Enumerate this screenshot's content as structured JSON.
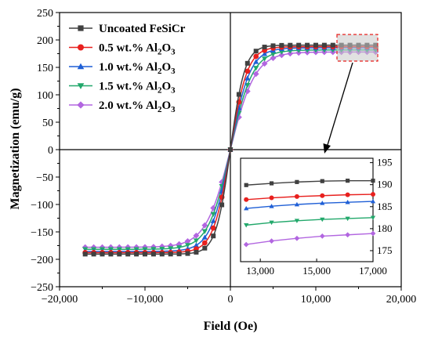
{
  "chart_data": {
    "type": "line",
    "xlabel": "Field (Oe)",
    "ylabel": "Magnetization (emu/g)",
    "xlim": [
      -20000,
      20000
    ],
    "ylim": [
      -250,
      250
    ],
    "xticks": [
      -20000,
      -10000,
      0,
      10000,
      20000
    ],
    "xtick_labels": [
      "−20,000",
      "−10,000",
      "0",
      "10,000",
      "20,000"
    ],
    "yticks": [
      -250,
      -200,
      -150,
      -100,
      -50,
      0,
      50,
      100,
      150,
      200,
      250
    ],
    "ytick_labels": [
      "−250",
      "−200",
      "−150",
      "−100",
      "−50",
      "0",
      "50",
      "100",
      "150",
      "200",
      "250"
    ],
    "legend_position": "top-left",
    "grid": false,
    "series": [
      {
        "name": "Uncoated FeSiCr",
        "name_base": "Uncoated FeSiCr",
        "name_sub": "",
        "color": "#404040",
        "marker": "square",
        "ms": 190.5,
        "hk": 1700,
        "inset": [
          189.9,
          190.3,
          190.6,
          190.8,
          190.9,
          190.9
        ]
      },
      {
        "name": "0.5 wt.% Al2O3",
        "name_base": "0.5 wt.% Al",
        "name_sub": "2",
        "name_tail": "O",
        "name_sub2": "3",
        "color": "#e8201e",
        "marker": "circle",
        "ms": 187.8,
        "hk": 2000,
        "inset": [
          186.6,
          187.0,
          187.3,
          187.5,
          187.7,
          187.8
        ]
      },
      {
        "name": "1.0 wt.% Al2O3",
        "name_base": "1.0 wt.% Al",
        "name_sub": "2",
        "name_tail": "O",
        "name_sub2": "3",
        "color": "#1f5fd6",
        "marker": "triangle-up",
        "ms": 185.6,
        "hk": 2300,
        "inset": [
          184.6,
          185.1,
          185.5,
          185.8,
          186.0,
          186.2
        ]
      },
      {
        "name": "1.5 wt.% Al2O3",
        "name_base": "1.5 wt.% Al",
        "name_sub": "2",
        "name_tail": "O",
        "name_sub2": "3",
        "color": "#22a86b",
        "marker": "triangle-down",
        "ms": 181.8,
        "hk": 2600,
        "inset": [
          180.8,
          181.4,
          181.8,
          182.1,
          182.3,
          182.5
        ]
      },
      {
        "name": "2.0 wt.% Al2O3",
        "name_base": "2.0 wt.% Al",
        "name_sub": "2",
        "name_tail": "O",
        "name_sub2": "3",
        "color": "#b266e0",
        "marker": "diamond",
        "ms": 178.0,
        "hk": 2900,
        "inset": [
          176.4,
          177.2,
          177.8,
          178.3,
          178.6,
          178.9
        ]
      }
    ],
    "x_points": [
      -17000,
      -16000,
      -15000,
      -14000,
      -13000,
      -12000,
      -11000,
      -10000,
      -9000,
      -8000,
      -7000,
      -6000,
      -5000,
      -4000,
      -3000,
      -2000,
      -1000,
      0,
      1000,
      2000,
      3000,
      4000,
      5000,
      6000,
      7000,
      8000,
      9000,
      10000,
      11000,
      12000,
      13000,
      14000,
      15000,
      16000,
      17000
    ],
    "inset": {
      "xlim": [
        12300,
        17000
      ],
      "ylim": [
        172.5,
        196
      ],
      "x_points": [
        12500,
        13400,
        14300,
        15200,
        16100,
        17000
      ],
      "xticks": [
        13000,
        15000,
        17000
      ],
      "xtick_labels": [
        "13,000",
        "15,000",
        "17,000"
      ],
      "yticks": [
        175,
        180,
        185,
        190,
        195
      ],
      "ytick_labels": [
        "175",
        "180",
        "185",
        "190",
        "195"
      ]
    }
  }
}
